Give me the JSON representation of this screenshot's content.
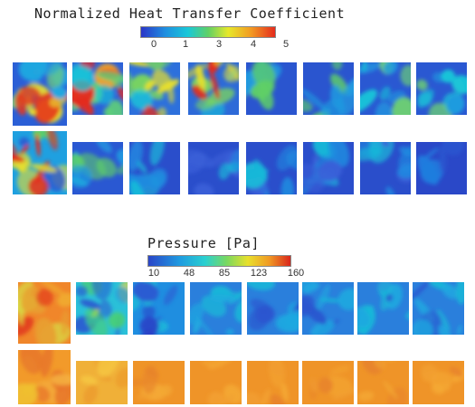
{
  "heat_transfer": {
    "title": "Normalized Heat Transfer Coefficient",
    "colorbar_ticks": [
      "0",
      "1",
      "3",
      "4",
      "5"
    ],
    "colormap": [
      "#2a35c8",
      "#1f8fe0",
      "#19c8d8",
      "#5fd066",
      "#e6e82a",
      "#f29a22",
      "#e52b1d"
    ]
  },
  "pressure": {
    "title": "Pressure [Pa]",
    "colorbar_ticks": [
      "10",
      "48",
      "85",
      "123",
      "160"
    ],
    "colormap": [
      "#2a45c8",
      "#1f9be0",
      "#2ad0d0",
      "#78d860",
      "#e8e02c",
      "#f09a24",
      "#d9261c"
    ]
  }
}
